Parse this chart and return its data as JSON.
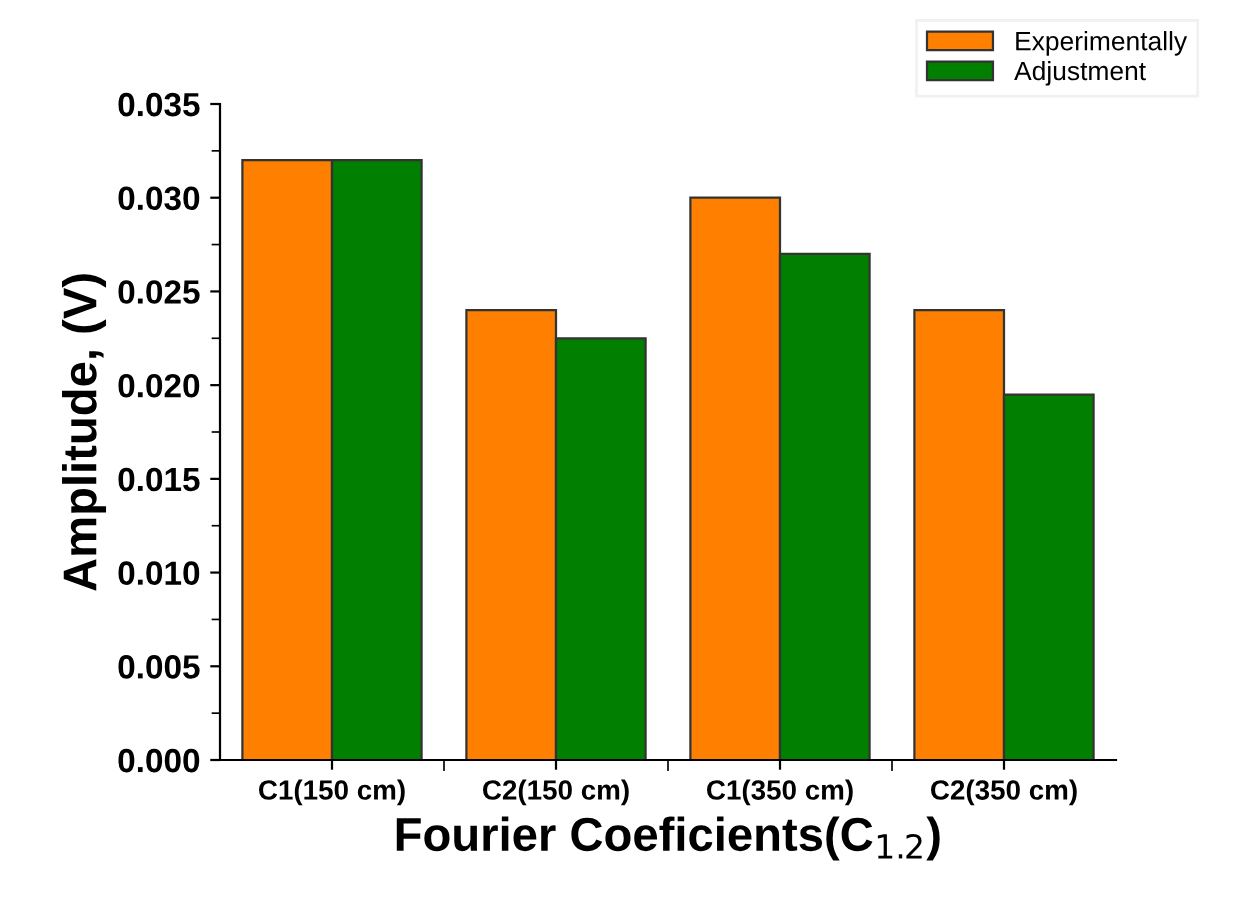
{
  "chart_data": {
    "type": "bar",
    "xlabel": "Fourier Coeficients(C$_{1.2}$)",
    "ylabel": "Amplitude, (V)",
    "categories": [
      "C1(150 cm)",
      "C2(150 cm)",
      "C1(350 cm)",
      "C2(350 cm)"
    ],
    "series": [
      {
        "name": "Experimentally",
        "color": "#ff8000",
        "values": [
          0.032,
          0.024,
          0.03,
          0.024
        ]
      },
      {
        "name": "Adjustment",
        "color": "#007f00",
        "values": [
          0.032,
          0.0225,
          0.027,
          0.0195
        ]
      }
    ],
    "ylim": [
      0,
      0.035
    ],
    "yticks": [
      {
        "value": 0,
        "label": "0.000"
      },
      {
        "value": 0.005,
        "label": "0.005"
      },
      {
        "value": 0.01,
        "label": "0.010"
      },
      {
        "value": 0.015,
        "label": "0.015"
      },
      {
        "value": 0.02,
        "label": "0.020"
      },
      {
        "value": 0.025,
        "label": "0.025"
      },
      {
        "value": 0.03,
        "label": "0.030"
      },
      {
        "value": 0.035,
        "label": "0.035"
      }
    ],
    "grid": false,
    "legend": "top right"
  }
}
